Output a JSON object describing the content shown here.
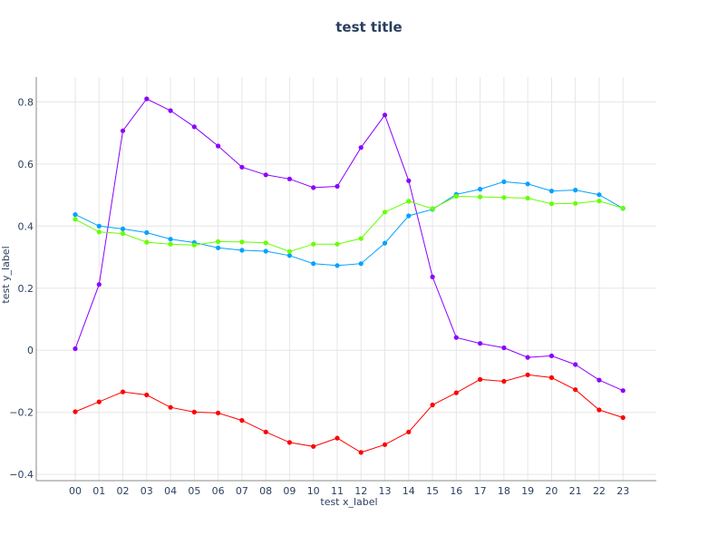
{
  "chart_data": {
    "type": "line",
    "title": "test title",
    "xlabel": "test x_label",
    "ylabel": "test y_label",
    "categories": [
      "00",
      "01",
      "02",
      "03",
      "04",
      "05",
      "06",
      "07",
      "08",
      "09",
      "10",
      "11",
      "12",
      "13",
      "14",
      "15",
      "16",
      "17",
      "18",
      "19",
      "20",
      "21",
      "22",
      "23"
    ],
    "y_ticks": [
      "−0.4",
      "−0.2",
      "0",
      "0.2",
      "0.4",
      "0.6",
      "0.8"
    ],
    "ylim": [
      -0.42,
      0.88
    ],
    "grid": true,
    "legend": "none",
    "series": [
      {
        "color": "#8b00ff",
        "values": [
          0.005,
          0.212,
          0.707,
          0.81,
          0.772,
          0.72,
          0.658,
          0.59,
          0.565,
          0.552,
          0.524,
          0.528,
          0.653,
          0.758,
          0.546,
          0.236,
          0.041,
          0.022,
          0.008,
          -0.023,
          -0.018,
          -0.046,
          -0.096,
          -0.13
        ]
      },
      {
        "color": "#00a2ff",
        "values": [
          0.437,
          0.4,
          0.391,
          0.379,
          0.358,
          0.347,
          0.33,
          0.322,
          0.319,
          0.305,
          0.279,
          0.273,
          0.279,
          0.345,
          0.433,
          0.454,
          0.502,
          0.519,
          0.543,
          0.536,
          0.513,
          0.516,
          0.501,
          0.457
        ]
      },
      {
        "color": "#66ff00",
        "values": [
          0.422,
          0.381,
          0.376,
          0.348,
          0.342,
          0.339,
          0.35,
          0.349,
          0.346,
          0.318,
          0.342,
          0.342,
          0.36,
          0.445,
          0.48,
          0.456,
          0.496,
          0.494,
          0.492,
          0.49,
          0.472,
          0.473,
          0.481,
          0.458
        ]
      },
      {
        "color": "#ff0000",
        "values": [
          -0.198,
          -0.166,
          -0.134,
          -0.144,
          -0.184,
          -0.199,
          -0.202,
          -0.226,
          -0.263,
          -0.297,
          -0.31,
          -0.283,
          -0.329,
          -0.304,
          -0.263,
          -0.176,
          -0.137,
          -0.094,
          -0.1,
          -0.079,
          -0.088,
          -0.127,
          -0.192,
          -0.217
        ]
      }
    ]
  }
}
